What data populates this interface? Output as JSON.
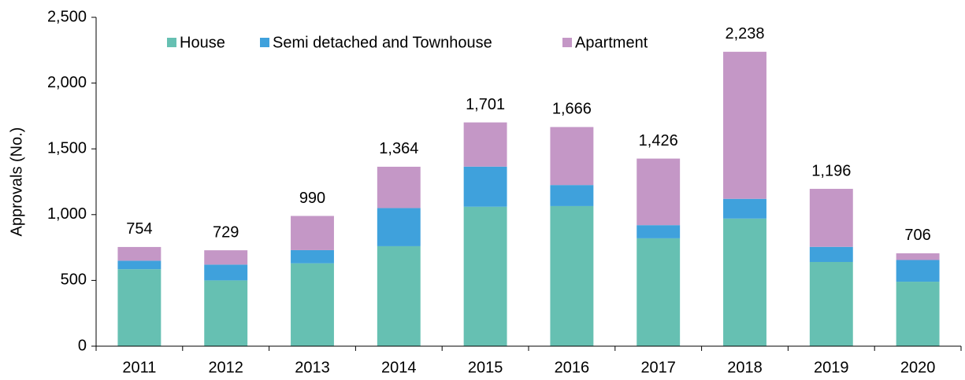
{
  "chart_data": {
    "type": "stacked_bar",
    "y_label": "Approvals (No.)",
    "categories": [
      "2011",
      "2012",
      "2013",
      "2014",
      "2015",
      "2016",
      "2017",
      "2018",
      "2019",
      "2020"
    ],
    "series": [
      {
        "name": "House",
        "color": "#66c0b2",
        "values": [
          585,
          500,
          630,
          760,
          1060,
          1065,
          820,
          970,
          640,
          490
        ]
      },
      {
        "name": "Semi detached and Townhouse",
        "color": "#3fa1dc",
        "values": [
          65,
          120,
          100,
          290,
          305,
          160,
          100,
          150,
          115,
          165
        ]
      },
      {
        "name": "Apartment",
        "color": "#c497c6",
        "values": [
          104,
          109,
          260,
          314,
          336,
          441,
          506,
          1118,
          441,
          51
        ]
      }
    ],
    "totals": [
      754,
      729,
      990,
      1364,
      1701,
      1666,
      1426,
      2238,
      1196,
      706
    ],
    "total_labels": [
      "754",
      "729",
      "990",
      "1,364",
      "1,701",
      "1,666",
      "1,426",
      "2,238",
      "1,196",
      "706"
    ],
    "ylim": [
      0,
      2500
    ],
    "yticks": [
      0,
      500,
      {
        "value": 1000,
        "label": "1,000"
      },
      {
        "value": 1500,
        "label": "1,500"
      },
      {
        "value": 2000,
        "label": "2,000"
      },
      {
        "value": 2500,
        "label": "2,500"
      }
    ],
    "grid": false,
    "legend": "top-left"
  }
}
